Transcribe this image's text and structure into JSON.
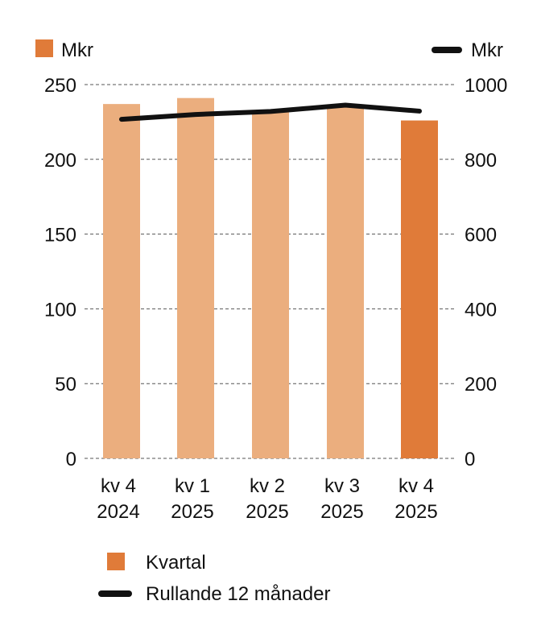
{
  "chart_data": {
    "type": "bar",
    "categories": [
      [
        "kv 4",
        "2024"
      ],
      [
        "kv 1",
        "2025"
      ],
      [
        "kv 2",
        "2025"
      ],
      [
        "kv 3",
        "2025"
      ],
      [
        "kv 4",
        "2025"
      ]
    ],
    "left_axis": {
      "unit_label": "Mkr",
      "ylim": [
        0,
        250
      ],
      "ticks": [
        "0",
        "50",
        "100",
        "150",
        "200",
        "250"
      ]
    },
    "right_axis": {
      "unit_label": "Mkr",
      "ylim": [
        0,
        1000
      ],
      "ticks": [
        "0",
        "200",
        "400",
        "600",
        "800",
        "1000"
      ]
    },
    "series": [
      {
        "name": "Kvartal",
        "type": "bar",
        "axis": "left",
        "values": [
          237,
          241,
          233,
          236,
          226
        ],
        "colors": [
          "#EBAE7E",
          "#EBAE7E",
          "#EBAE7E",
          "#EBAE7E",
          "#E07B39"
        ]
      },
      {
        "name": "Rullande 12 månader",
        "type": "line",
        "axis": "right",
        "values": [
          907,
          920,
          928,
          945,
          929
        ],
        "color": "#111111"
      }
    ],
    "grid": "dashed horizontal",
    "legend": {
      "position": "bottom-left",
      "swatch_color": "#E07B39"
    }
  }
}
